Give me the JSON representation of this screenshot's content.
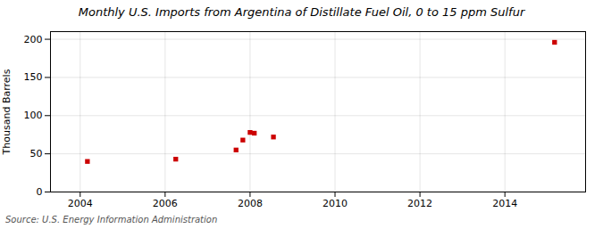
{
  "chart_data": {
    "type": "scatter",
    "title": "Monthly U.S. Imports from Argentina of Distillate Fuel Oil, 0 to 15 ppm Sulfur",
    "ylabel": "Thousand Barrels",
    "annotations": [
      "Source: U.S. Energy Information Administration"
    ],
    "x": [
      2004.17,
      2006.25,
      2007.67,
      2007.83,
      2008.0,
      2008.1,
      2008.55,
      2015.17
    ],
    "values": [
      40,
      43,
      55,
      68,
      78,
      77,
      72,
      196
    ],
    "color": "#cc0000",
    "marker": "square",
    "xlim": [
      2003.3,
      2015.9
    ],
    "ylim": [
      0,
      210
    ],
    "xticks": [
      2004,
      2006,
      2008,
      2010,
      2012,
      2014
    ],
    "yticks": [
      0,
      50,
      100,
      150,
      200
    ],
    "grid": true
  }
}
